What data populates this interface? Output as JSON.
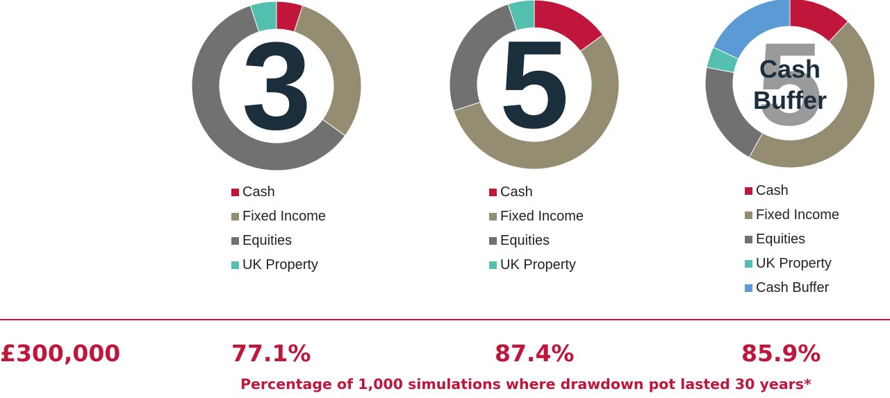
{
  "colors": {
    "cash": "#c0163b",
    "fixed_income": "#958d72",
    "equities": "#717171",
    "uk_property": "#52bfaf",
    "cash_buffer": "#5b9bd5",
    "accent": "#c0163b",
    "numeral": "#1a2e3b",
    "numeral_faded": "#9a9a9a"
  },
  "chart_data": [
    {
      "type": "donut",
      "center_label": "3",
      "series": [
        {
          "name": "Cash",
          "value": 5
        },
        {
          "name": "Fixed Income",
          "value": 30
        },
        {
          "name": "Equities",
          "value": 60
        },
        {
          "name": "UK Property",
          "value": 5
        }
      ],
      "legend": [
        "Cash",
        "Fixed Income",
        "Equities",
        "UK Property"
      ],
      "result": "77.1%"
    },
    {
      "type": "donut",
      "center_label": "5",
      "series": [
        {
          "name": "Cash",
          "value": 15
        },
        {
          "name": "Fixed Income",
          "value": 55
        },
        {
          "name": "Equities",
          "value": 25
        },
        {
          "name": "UK Property",
          "value": 5
        }
      ],
      "legend": [
        "Cash",
        "Fixed Income",
        "Equities",
        "UK Property"
      ],
      "result": "87.4%"
    },
    {
      "type": "donut",
      "center_label": "5",
      "overlay_label": [
        "Cash",
        "Buffer"
      ],
      "series": [
        {
          "name": "Cash",
          "value": 12
        },
        {
          "name": "Fixed Income",
          "value": 46
        },
        {
          "name": "Equities",
          "value": 20
        },
        {
          "name": "UK Property",
          "value": 4
        },
        {
          "name": "Cash Buffer",
          "value": 18
        }
      ],
      "legend": [
        "Cash",
        "Fixed Income",
        "Equities",
        "UK Property",
        "Cash Buffer"
      ],
      "result": "85.9%"
    }
  ],
  "starting_pot": "£300,000",
  "footnote": "Percentage of 1,000 simulations where drawdown pot lasted 30 years*"
}
